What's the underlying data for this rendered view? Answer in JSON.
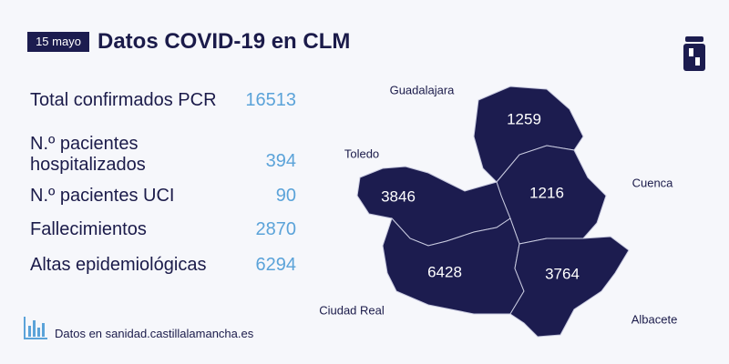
{
  "header": {
    "date": "15 mayo",
    "title": "Datos COVID-19 en CLM"
  },
  "stats": [
    {
      "label": "Total confirmados PCR",
      "value": 16513
    },
    {
      "label": "N.º pacientes hospitalizados",
      "value": 394
    },
    {
      "label": "N.º pacientes UCI",
      "value": 90
    },
    {
      "label": "Fallecimientos",
      "value": 2870
    },
    {
      "label": "Altas epidemiológicas",
      "value": 6294
    }
  ],
  "map": {
    "regions": [
      {
        "name": "Guadalajara",
        "value": 1259
      },
      {
        "name": "Cuenca",
        "value": 1216
      },
      {
        "name": "Toledo",
        "value": 3846
      },
      {
        "name": "Ciudad Real",
        "value": 6428
      },
      {
        "name": "Albacete",
        "value": 3764
      }
    ]
  },
  "footer": {
    "text": "Datos en sanidad.castillalamancha.es"
  }
}
